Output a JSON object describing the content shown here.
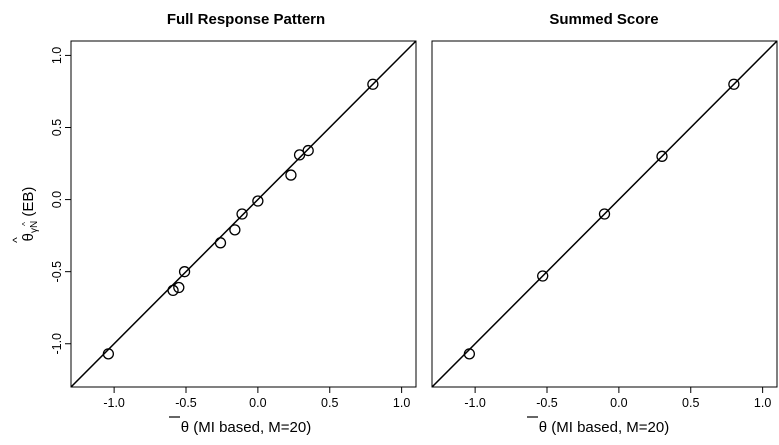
{
  "chart_data": [
    {
      "type": "scatter",
      "title": "Full Response Pattern",
      "xlabel": "θ (MI based, M=20)",
      "ylabel": "θ",
      "ylabel_sub": "γN",
      "ylabel_suffix": "(EB)",
      "xlim": [
        -1.3,
        1.1
      ],
      "ylim": [
        -1.3,
        1.1
      ],
      "x_ticks": [
        "-1.0",
        "-0.5",
        "0.0",
        "0.5",
        "1.0"
      ],
      "y_ticks": [
        "-1.0",
        "-0.5",
        "0.0",
        "0.5",
        "1.0"
      ],
      "reference_line": "y = x",
      "grid": false,
      "points": [
        {
          "x": -1.04,
          "y": -1.07
        },
        {
          "x": -0.59,
          "y": -0.63
        },
        {
          "x": -0.55,
          "y": -0.61
        },
        {
          "x": -0.51,
          "y": -0.5
        },
        {
          "x": -0.26,
          "y": -0.3
        },
        {
          "x": -0.16,
          "y": -0.21
        },
        {
          "x": -0.11,
          "y": -0.1
        },
        {
          "x": 0.0,
          "y": -0.01
        },
        {
          "x": 0.23,
          "y": 0.17
        },
        {
          "x": 0.29,
          "y": 0.31
        },
        {
          "x": 0.35,
          "y": 0.34
        },
        {
          "x": 0.8,
          "y": 0.8
        }
      ]
    },
    {
      "type": "scatter",
      "title": "Summed Score",
      "xlabel": "θ (MI based, M=20)",
      "xlim": [
        -1.3,
        1.1
      ],
      "ylim": [
        -1.3,
        1.1
      ],
      "x_ticks": [
        "-1.0",
        "-0.5",
        "0.0",
        "0.5",
        "1.0"
      ],
      "reference_line": "y = x",
      "grid": false,
      "points": [
        {
          "x": -1.04,
          "y": -1.07
        },
        {
          "x": -0.53,
          "y": -0.53
        },
        {
          "x": -0.1,
          "y": -0.1
        },
        {
          "x": 0.3,
          "y": 0.3
        },
        {
          "x": 0.8,
          "y": 0.8
        }
      ]
    }
  ]
}
